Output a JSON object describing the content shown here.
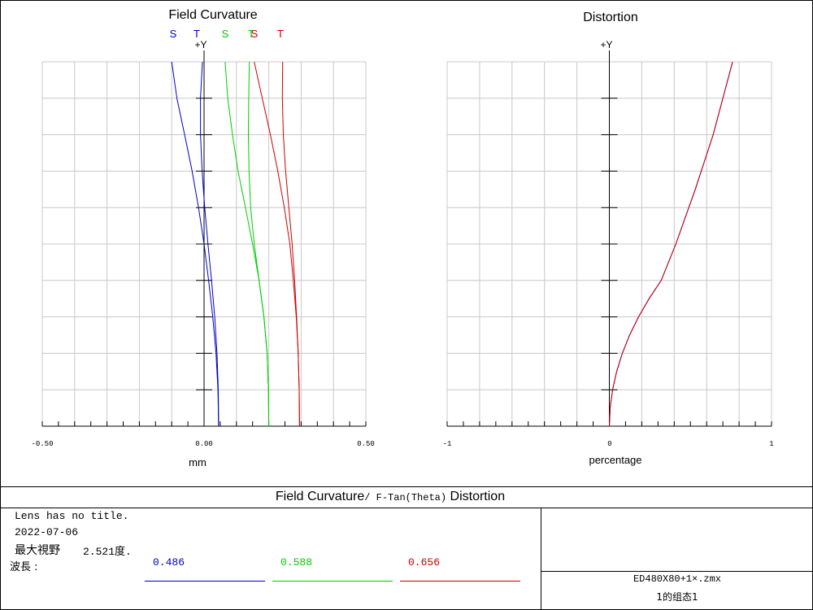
{
  "chart_data": [
    {
      "type": "line",
      "title": "Field Curvature",
      "xlabel": "mm",
      "ylabel": "+Y",
      "xlim": [
        -0.5,
        0.5
      ],
      "ylim": [
        0,
        1
      ],
      "x_tick_labels": [
        "-0.50",
        "0.00",
        "0.50"
      ],
      "legend": [
        "S",
        "T",
        "S",
        "T",
        "S",
        "T"
      ],
      "series": [
        {
          "name": "S",
          "color": "#0000cc",
          "points": [
            [
              0.045,
              0
            ],
            [
              0.043,
              0.1
            ],
            [
              0.037,
              0.2
            ],
            [
              0.027,
              0.3
            ],
            [
              0.014,
              0.4
            ],
            [
              0.0,
              0.5
            ],
            [
              -0.017,
              0.6
            ],
            [
              -0.037,
              0.7
            ],
            [
              -0.06,
              0.8
            ],
            [
              -0.084,
              0.9
            ],
            [
              -0.1,
              1.0
            ]
          ]
        },
        {
          "name": "T",
          "color": "#0000cc",
          "points": [
            [
              0.045,
              0
            ],
            [
              0.044,
              0.1
            ],
            [
              0.04,
              0.2
            ],
            [
              0.033,
              0.3
            ],
            [
              0.023,
              0.4
            ],
            [
              0.012,
              0.5
            ],
            [
              0.002,
              0.6
            ],
            [
              -0.006,
              0.7
            ],
            [
              -0.011,
              0.8
            ],
            [
              -0.011,
              0.9
            ],
            [
              -0.005,
              1.0
            ]
          ]
        },
        {
          "name": "S",
          "color": "#00cc00",
          "points": [
            [
              0.2,
              0
            ],
            [
              0.199,
              0.1
            ],
            [
              0.195,
              0.2
            ],
            [
              0.185,
              0.3
            ],
            [
              0.17,
              0.4
            ],
            [
              0.15,
              0.5
            ],
            [
              0.128,
              0.6
            ],
            [
              0.105,
              0.7
            ],
            [
              0.088,
              0.8
            ],
            [
              0.073,
              0.9
            ],
            [
              0.065,
              1.0
            ]
          ]
        },
        {
          "name": "T",
          "color": "#00cc00",
          "points": [
            [
              0.2,
              0
            ],
            [
              0.199,
              0.1
            ],
            [
              0.195,
              0.2
            ],
            [
              0.185,
              0.3
            ],
            [
              0.17,
              0.4
            ],
            [
              0.155,
              0.5
            ],
            [
              0.144,
              0.6
            ],
            [
              0.139,
              0.7
            ],
            [
              0.137,
              0.8
            ],
            [
              0.138,
              0.9
            ],
            [
              0.14,
              1.0
            ]
          ]
        },
        {
          "name": "S",
          "color": "#cc0000",
          "points": [
            [
              0.295,
              0
            ],
            [
              0.294,
              0.1
            ],
            [
              0.291,
              0.2
            ],
            [
              0.285,
              0.3
            ],
            [
              0.276,
              0.4
            ],
            [
              0.265,
              0.5
            ],
            [
              0.248,
              0.6
            ],
            [
              0.228,
              0.7
            ],
            [
              0.205,
              0.8
            ],
            [
              0.18,
              0.9
            ],
            [
              0.155,
              1.0
            ]
          ]
        },
        {
          "name": "T",
          "color": "#cc0000",
          "points": [
            [
              0.295,
              0
            ],
            [
              0.294,
              0.1
            ],
            [
              0.291,
              0.2
            ],
            [
              0.286,
              0.3
            ],
            [
              0.28,
              0.4
            ],
            [
              0.272,
              0.5
            ],
            [
              0.262,
              0.6
            ],
            [
              0.252,
              0.7
            ],
            [
              0.245,
              0.8
            ],
            [
              0.242,
              0.9
            ],
            [
              0.243,
              1.0
            ]
          ]
        }
      ]
    },
    {
      "type": "line",
      "title": "Distortion",
      "xlabel": "percentage",
      "ylabel": "+Y",
      "xlim": [
        -1,
        1
      ],
      "ylim": [
        0,
        1
      ],
      "x_tick_labels": [
        "-1",
        "0",
        "1"
      ],
      "series": [
        {
          "name": "",
          "color": "#0000cc",
          "points": [
            [
              0,
              0
            ],
            [
              0.005,
              0.05
            ],
            [
              0.02,
              0.1
            ],
            [
              0.045,
              0.15
            ],
            [
              0.08,
              0.2
            ],
            [
              0.125,
              0.25
            ],
            [
              0.18,
              0.3
            ],
            [
              0.245,
              0.35
            ],
            [
              0.32,
              0.4
            ],
            [
              0.41,
              0.5
            ],
            [
              0.53,
              0.65
            ],
            [
              0.64,
              0.8
            ],
            [
              0.76,
              1.0
            ]
          ]
        },
        {
          "name": "",
          "color": "#cc0000",
          "points": [
            [
              0,
              0
            ],
            [
              0.005,
              0.05
            ],
            [
              0.02,
              0.1
            ],
            [
              0.045,
              0.15
            ],
            [
              0.08,
              0.2
            ],
            [
              0.125,
              0.25
            ],
            [
              0.18,
              0.3
            ],
            [
              0.245,
              0.35
            ],
            [
              0.32,
              0.4
            ],
            [
              0.41,
              0.5
            ],
            [
              0.53,
              0.65
            ],
            [
              0.64,
              0.8
            ],
            [
              0.76,
              1.0
            ]
          ]
        }
      ]
    }
  ],
  "footer": {
    "title_a": "Field Curvature",
    "title_b": "/ F-Tan(Theta)",
    "title_c": " Distortion",
    "lens_title": "Lens has no title.",
    "date": "2022-07-06",
    "max_fov": "最大視野",
    "fov_value": "2.521度.",
    "wavelength_label": "波長 :",
    "wavelengths": [
      {
        "value": "0.486",
        "color": "#0000cc"
      },
      {
        "value": "0.588",
        "color": "#00cc00"
      },
      {
        "value": "0.656",
        "color": "#cc0000"
      }
    ],
    "file_name": "ED480X80+1×.zmx",
    "config": "1的组态1"
  }
}
